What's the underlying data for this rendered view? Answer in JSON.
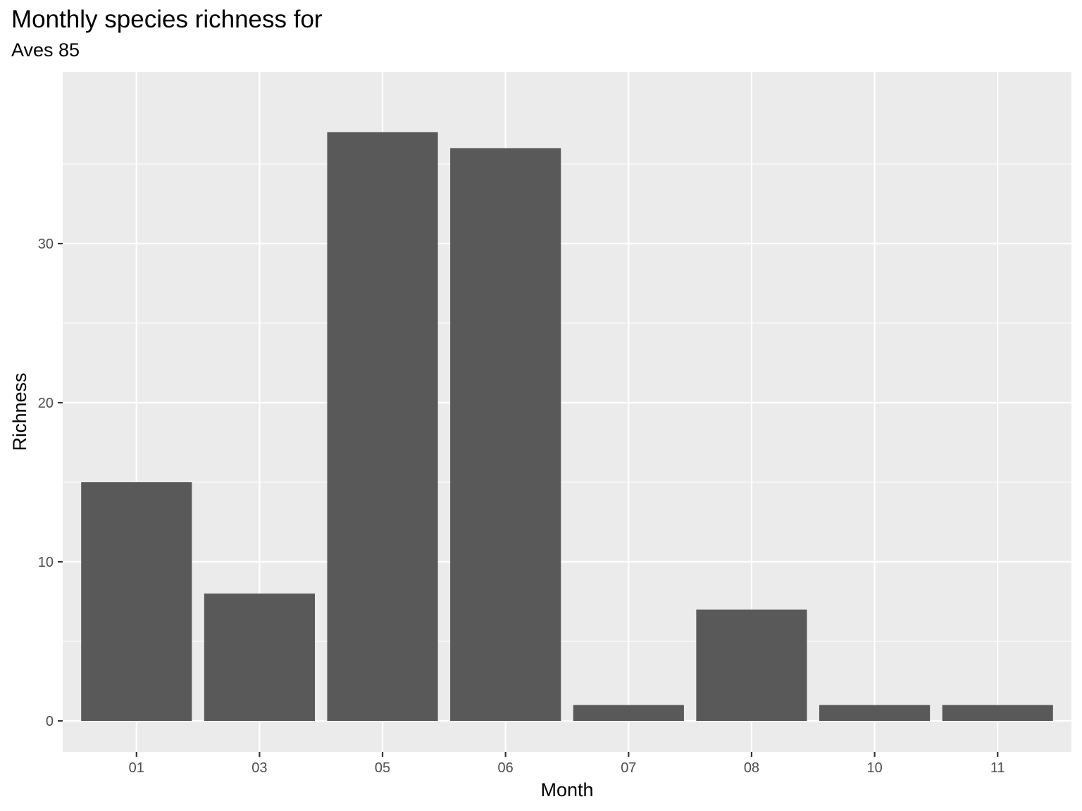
{
  "chart_data": {
    "type": "bar",
    "title": "Monthly species richness for",
    "subtitle": "Aves 85",
    "xlabel": "Month",
    "ylabel": "Richness",
    "categories": [
      "01",
      "03",
      "05",
      "06",
      "07",
      "08",
      "10",
      "11"
    ],
    "values": [
      15,
      8,
      37,
      36,
      1,
      7,
      1,
      1
    ],
    "ylim": [
      0,
      38.85
    ],
    "yticks": [
      0,
      10,
      20,
      30
    ],
    "grid": true,
    "colors": {
      "bar": "#595959",
      "panel": "#ebebeb",
      "grid": "#ffffff"
    }
  }
}
